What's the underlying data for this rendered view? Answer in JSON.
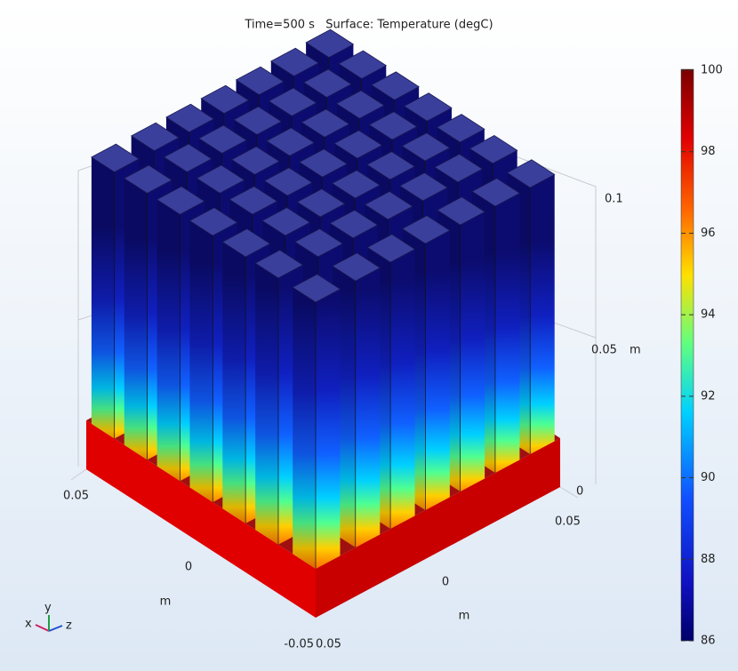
{
  "title": "Time=500 s   Surface: Temperature (degC)",
  "colorbar": {
    "ticks": [
      "100",
      "98",
      "96",
      "94",
      "92",
      "90",
      "88",
      "86"
    ]
  },
  "axes": {
    "vertical": {
      "ticks": [
        "0.1",
        "0.05",
        "0"
      ],
      "unit": "m"
    },
    "left": {
      "ticks": [
        "0.05",
        "0",
        "-0.05"
      ],
      "unit": "m"
    },
    "right": {
      "ticks": [
        "0.05",
        "0",
        "0.05"
      ],
      "unit": "m"
    }
  },
  "triad": {
    "x": "x",
    "y": "y",
    "z": "z"
  }
}
